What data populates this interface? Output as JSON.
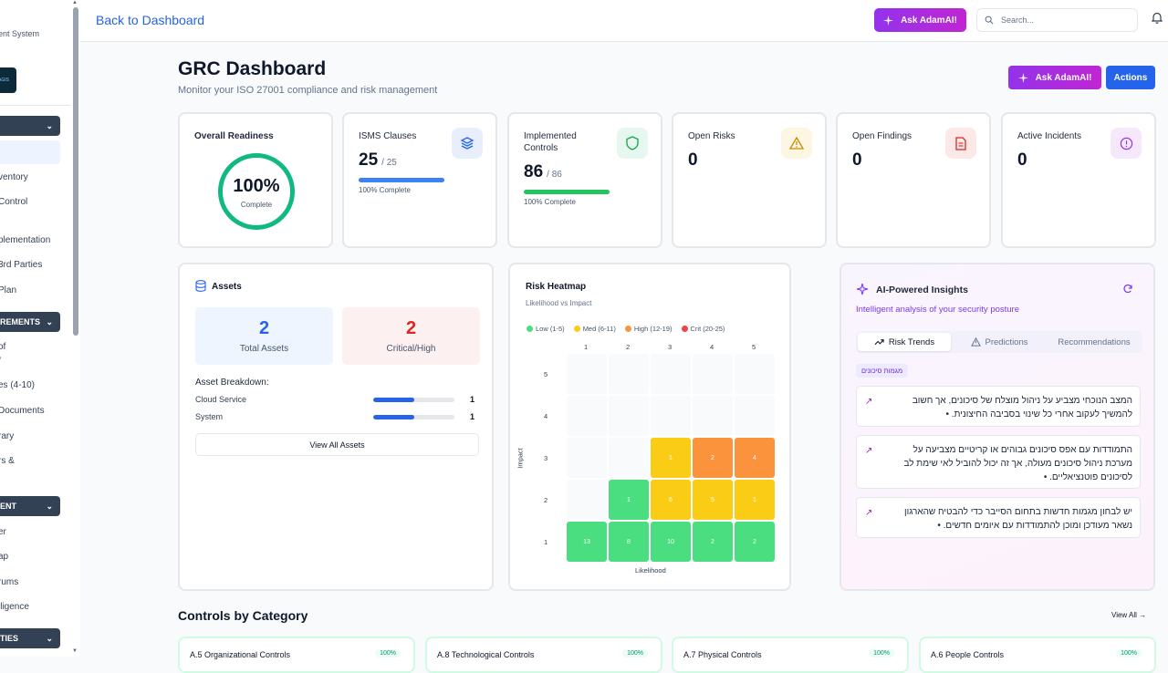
{
  "sidebar": {
    "subtitle": "ent System",
    "logo_text": "AGIS",
    "sections": [
      {
        "label": ""
      },
      {
        "label": "REMENTS"
      },
      {
        "label": "ENT"
      },
      {
        "label": "TIES"
      }
    ],
    "items": [
      "ventory",
      "Control",
      "plementation",
      "3rd Parties",
      "Plan",
      "of",
      "/",
      "es (4-10)",
      "Documents",
      "rary",
      "rs &",
      "er",
      "ap",
      "rums",
      "lligence"
    ]
  },
  "topbar": {
    "back_label": "Back to Dashboard",
    "ask_label": "Ask AdamAI!",
    "search_placeholder": "Search..."
  },
  "header": {
    "title": "GRC Dashboard",
    "subtitle": "Monitor your ISO 27001 compliance and risk management",
    "ask_label": "Ask AdamAI!",
    "actions_label": "Actions"
  },
  "stats": {
    "readiness": {
      "title": "Overall Readiness",
      "value": "100%",
      "label": "Complete"
    },
    "clauses": {
      "title": "ISMS Clauses",
      "value": "25",
      "total": "/ 25",
      "progress": 1.0,
      "progress_label": "100% Complete"
    },
    "controls": {
      "title": "Implemented Controls",
      "value": "86",
      "total": "/ 86",
      "progress": 1.0,
      "progress_label": "100% Complete"
    },
    "risks": {
      "title": "Open Risks",
      "value": "0"
    },
    "findings": {
      "title": "Open Findings",
      "value": "0"
    },
    "incidents": {
      "title": "Active Incidents",
      "value": "0"
    }
  },
  "assets": {
    "title": "Assets",
    "total_value": "2",
    "total_label": "Total Assets",
    "critical_value": "2",
    "critical_label": "Critical/High",
    "breakdown_title": "Asset Breakdown:",
    "breakdown": [
      {
        "name": "Cloud Service",
        "count": "1",
        "fraction": 0.5
      },
      {
        "name": "System",
        "count": "1",
        "fraction": 0.5
      }
    ],
    "view_all_label": "View All Assets"
  },
  "heatmap": {
    "title": "Risk Heatmap",
    "subtitle": "Likelihood vs Impact",
    "legend": [
      {
        "label": "Low (1-5)",
        "color": "#4ade80"
      },
      {
        "label": "Med (6-11)",
        "color": "#facc15"
      },
      {
        "label": "High (12-19)",
        "color": "#fb923c"
      },
      {
        "label": "Crit (20-25)",
        "color": "#ef4444"
      }
    ],
    "x_label": "Likelihood",
    "y_label": "Impact",
    "x_ticks": [
      "1",
      "2",
      "3",
      "4",
      "5"
    ],
    "y_ticks": [
      "5",
      "4",
      "3",
      "2",
      "1"
    ],
    "cells": [
      {
        "impact": 3,
        "likelihood": 3,
        "count": "1",
        "color": "#facc15"
      },
      {
        "impact": 3,
        "likelihood": 4,
        "count": "2",
        "color": "#fb923c"
      },
      {
        "impact": 3,
        "likelihood": 5,
        "count": "4",
        "color": "#fb923c"
      },
      {
        "impact": 2,
        "likelihood": 2,
        "count": "1",
        "color": "#4ade80"
      },
      {
        "impact": 2,
        "likelihood": 3,
        "count": "6",
        "color": "#facc15"
      },
      {
        "impact": 2,
        "likelihood": 4,
        "count": "5",
        "color": "#facc15"
      },
      {
        "impact": 2,
        "likelihood": 5,
        "count": "1",
        "color": "#facc15"
      },
      {
        "impact": 1,
        "likelihood": 1,
        "count": "13",
        "color": "#4ade80"
      },
      {
        "impact": 1,
        "likelihood": 2,
        "count": "8",
        "color": "#4ade80"
      },
      {
        "impact": 1,
        "likelihood": 3,
        "count": "10",
        "color": "#4ade80"
      },
      {
        "impact": 1,
        "likelihood": 4,
        "count": "2",
        "color": "#4ade80"
      },
      {
        "impact": 1,
        "likelihood": 5,
        "count": "2",
        "color": "#4ade80"
      }
    ]
  },
  "insights": {
    "title": "AI-Powered Insights",
    "subtitle": "Intelligent analysis of your security posture",
    "tabs": [
      "Risk Trends",
      "Predictions",
      "Recommendations"
    ],
    "badge": "מגמות סיכונים",
    "items": [
      "המצב הנוכחי מצביע על ניהול מוצלח של סיכונים, אך חשוב להמשיך לעקוב אחרי כל שינוי בסביבה החיצונית. •",
      "התמודדות עם אפס סיכונים גבוהים או קריטיים מצביעה על מערכת ניהול סיכונים מעולה, אך זה יכול להוביל לאי שימת לב לסיכונים פוטנציאליים. •",
      "יש לבחון מגמות חדשות בתחום הסייבר כדי להבטיח שהארגון נשאר מעודכן ומוכן להתמודדות עם איומים חדשים. •"
    ]
  },
  "controls": {
    "title": "Controls by Category",
    "view_all": "View All →",
    "cards": [
      {
        "name": "A.5 Organizational Controls",
        "pct": "100%"
      },
      {
        "name": "A.8 Technological Controls",
        "pct": "100%"
      },
      {
        "name": "A.7 Physical Controls",
        "pct": "100%"
      },
      {
        "name": "A.6 People Controls",
        "pct": "100%"
      }
    ]
  },
  "colors": {
    "primary": "#2563eb",
    "ai": "#9333ea",
    "success": "#10b981"
  }
}
